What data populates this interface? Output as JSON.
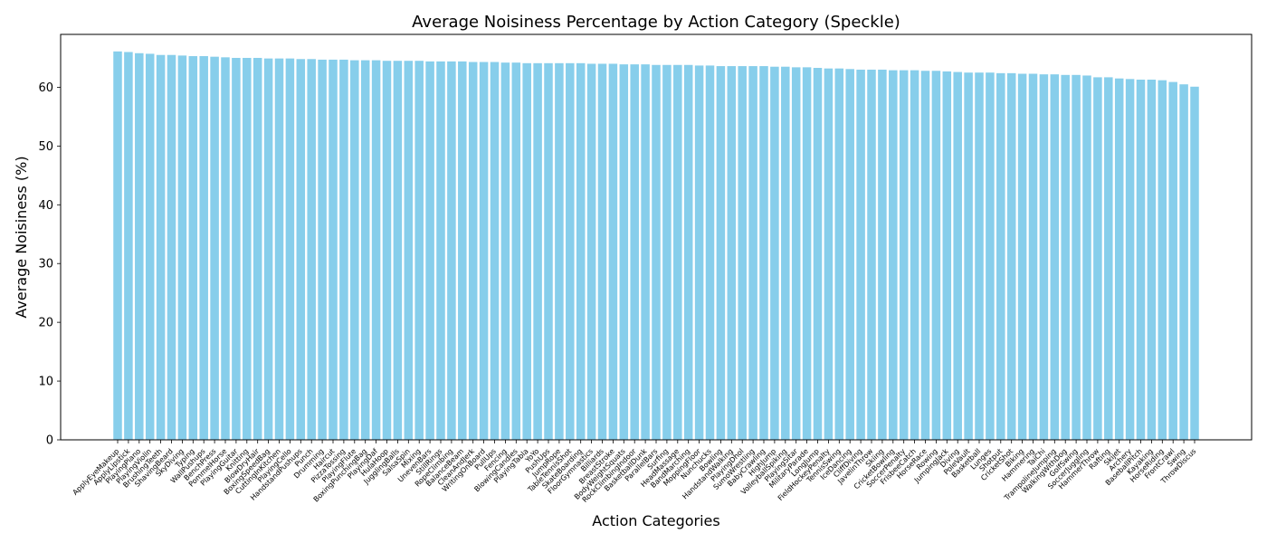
{
  "chart_data": {
    "type": "bar",
    "title": "Average Noisiness Percentage by Action Category (Speckle)",
    "xlabel": "Action Categories",
    "ylabel": "Average Noisiness (%)",
    "ylim": [
      0,
      69
    ],
    "yticks": [
      0,
      10,
      20,
      30,
      40,
      50,
      60
    ],
    "grid": false,
    "legend": "none",
    "bar_color": "#87CEEB",
    "categories": [
      "ApplyEyeMakeup",
      "ApplyLipstick",
      "PlayingPiano",
      "PlayingViolin",
      "BrushingTeeth",
      "ShavingBeard",
      "SkyDiving",
      "Typing",
      "WallPushups",
      "BenchPress",
      "PommelHorse",
      "PlayingGuitar",
      "Knitting",
      "BlowDryHair",
      "BoxingSpeedBag",
      "CuttingInKitchen",
      "PlayingCello",
      "HandstandPushups",
      "Punch",
      "Drumming",
      "Haircut",
      "PizzaTossing",
      "PlayingFlute",
      "BoxingPunchingBag",
      "PlayingDaf",
      "HulaHoop",
      "JugglingBalls",
      "SalsaSpin",
      "Mixing",
      "UnevenBars",
      "StillRings",
      "RopeClimbing",
      "BalanceBeam",
      "CleanAndJerk",
      "WritingOnBoard",
      "PullUps",
      "Fencing",
      "BlowingCandles",
      "PlayingTabla",
      "YoYo",
      "PushUps",
      "JumpRope",
      "TableTennisShot",
      "SkateBoarding",
      "FloorGymnastics",
      "Billiards",
      "BreastStroke",
      "BodyWeightSquats",
      "RockClimbingIndoor",
      "BasketballDunk",
      "ParallelBars",
      "Surfing",
      "HeadMassage",
      "BandMarching",
      "MoppingFloor",
      "Nunchucks",
      "Bowling",
      "HandstandWalking",
      "PlayingDhol",
      "SumoWrestling",
      "BabyCrawling",
      "HighJump",
      "VolleyballSpiking",
      "PlayingSitar",
      "MilitaryParade",
      "LongJump",
      "FieldHockeyPenalty",
      "TennisSwing",
      "IceDancing",
      "CliffDiving",
      "JavelinThrow",
      "Skiing",
      "CricketBowling",
      "SoccerPenalty",
      "FrisbeeCatch",
      "HorseRace",
      "Rowing",
      "JumpingJack",
      "Diving",
      "PoleVault",
      "Basketball",
      "Lunges",
      "Shotput",
      "CricketShot",
      "Biking",
      "Hammering",
      "TaiChi",
      "TrampolineJumping",
      "WalkingWithDog",
      "GolfSwing",
      "SoccerJuggling",
      "HammerThrow",
      "Rafting",
      "Skijet",
      "Archery",
      "BaseballPitch",
      "Kayaking",
      "HorseRiding",
      "FrontCrawl",
      "Swing",
      "ThrowDiscus"
    ],
    "values": [
      66.1,
      66.0,
      65.8,
      65.7,
      65.5,
      65.5,
      65.4,
      65.3,
      65.3,
      65.2,
      65.1,
      65.0,
      65.0,
      65.0,
      64.9,
      64.9,
      64.9,
      64.8,
      64.8,
      64.7,
      64.7,
      64.7,
      64.6,
      64.6,
      64.6,
      64.5,
      64.5,
      64.5,
      64.5,
      64.4,
      64.4,
      64.4,
      64.4,
      64.3,
      64.3,
      64.3,
      64.2,
      64.2,
      64.1,
      64.1,
      64.1,
      64.1,
      64.1,
      64.1,
      64.0,
      64.0,
      64.0,
      63.9,
      63.9,
      63.9,
      63.8,
      63.8,
      63.8,
      63.8,
      63.7,
      63.7,
      63.6,
      63.6,
      63.6,
      63.6,
      63.6,
      63.5,
      63.5,
      63.4,
      63.4,
      63.3,
      63.2,
      63.2,
      63.1,
      63.0,
      63.0,
      63.0,
      62.9,
      62.9,
      62.9,
      62.8,
      62.8,
      62.7,
      62.6,
      62.5,
      62.5,
      62.5,
      62.4,
      62.4,
      62.3,
      62.3,
      62.2,
      62.2,
      62.1,
      62.1,
      62.0,
      61.7,
      61.7,
      61.5,
      61.4,
      61.3,
      61.3,
      61.2,
      60.9,
      60.5,
      60.1
    ]
  }
}
